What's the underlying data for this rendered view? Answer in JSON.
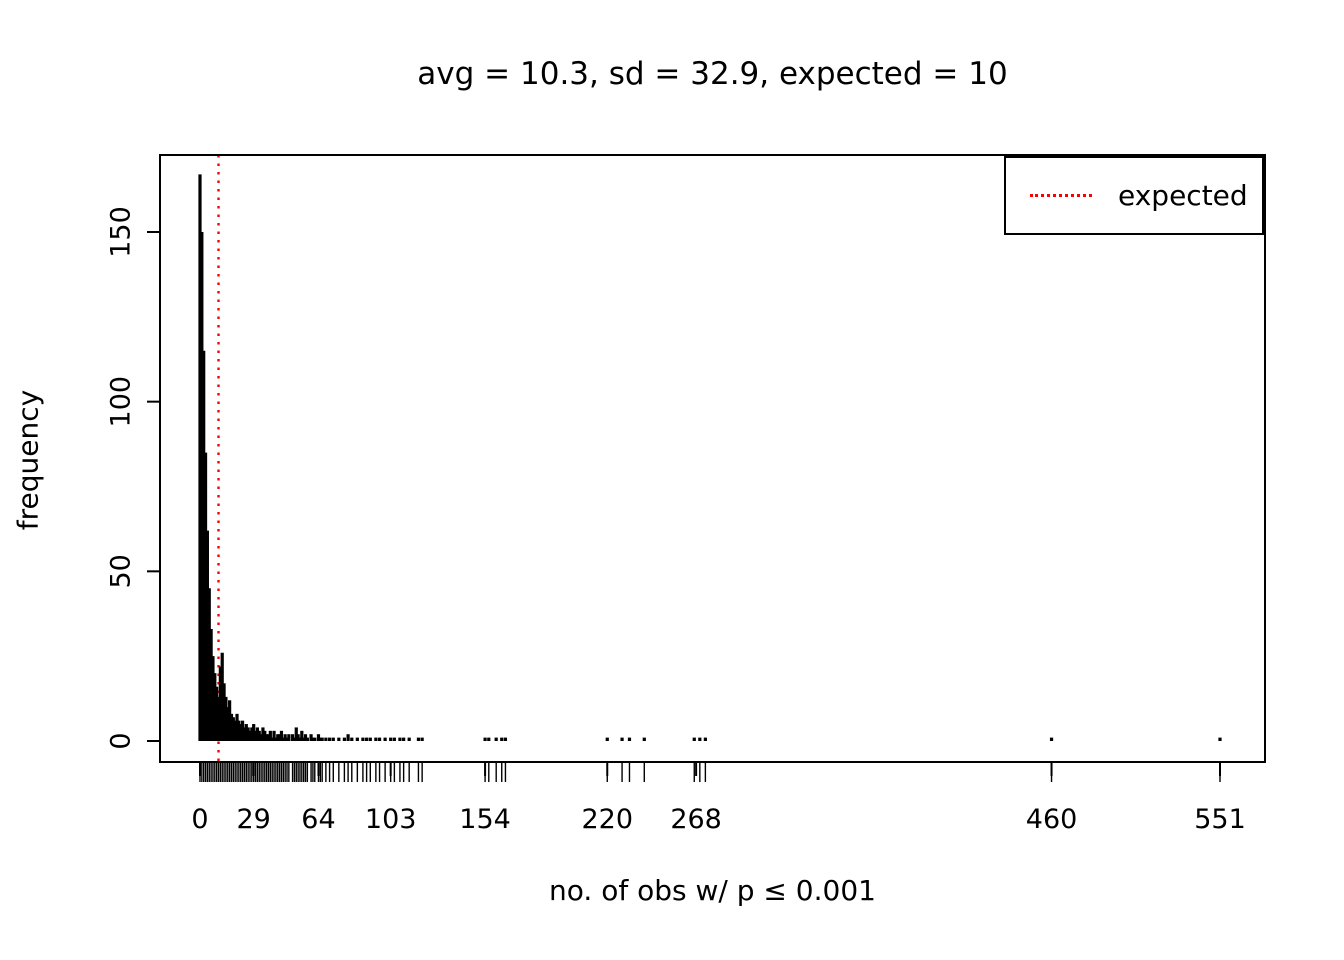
{
  "figure": {
    "title": "avg = 10.3, sd = 32.9, expected = 10",
    "x_axis_label": "no. of obs w/ p ≤ 0.001",
    "y_axis_label": "frequency",
    "legend": {
      "label": "expected"
    }
  },
  "chart_data": {
    "type": "bar",
    "subtype": "spike-histogram-with-rug",
    "title": "avg = 10.3, sd = 32.9, expected = 10",
    "xlabel": "no. of obs w/ p ≤ 0.001",
    "ylabel": "frequency",
    "xlim": [
      0,
      575
    ],
    "ylim": [
      0,
      170
    ],
    "x_tick_labels": [
      0,
      29,
      64,
      103,
      154,
      220,
      268,
      460,
      551
    ],
    "y_tick_labels": [
      0,
      50,
      100,
      150
    ],
    "grid": false,
    "legend": {
      "entries": [
        "expected"
      ],
      "position": "top-right",
      "line_style": "dotted"
    },
    "annotations": [
      {
        "type": "vline",
        "x": 10,
        "style": "dotted",
        "color": "#ff0000",
        "meaning": "expected"
      }
    ],
    "colors": {
      "spike": "#000000",
      "expected_line": "#ff0000"
    },
    "series": [
      {
        "name": "frequency",
        "points": [
          [
            0,
            167
          ],
          [
            1,
            150
          ],
          [
            2,
            115
          ],
          [
            3,
            85
          ],
          [
            4,
            62
          ],
          [
            5,
            45
          ],
          [
            6,
            33
          ],
          [
            7,
            25
          ],
          [
            8,
            20
          ],
          [
            9,
            16
          ],
          [
            10,
            13
          ],
          [
            11,
            22
          ],
          [
            12,
            26
          ],
          [
            13,
            17
          ],
          [
            14,
            13
          ],
          [
            15,
            10
          ],
          [
            16,
            12
          ],
          [
            17,
            8
          ],
          [
            18,
            7
          ],
          [
            19,
            6
          ],
          [
            20,
            8
          ],
          [
            21,
            6
          ],
          [
            22,
            5
          ],
          [
            23,
            6
          ],
          [
            24,
            4
          ],
          [
            25,
            5
          ],
          [
            26,
            4
          ],
          [
            27,
            3
          ],
          [
            28,
            4
          ],
          [
            29,
            5
          ],
          [
            30,
            3
          ],
          [
            31,
            4
          ],
          [
            32,
            3
          ],
          [
            33,
            2
          ],
          [
            34,
            4
          ],
          [
            35,
            3
          ],
          [
            36,
            2
          ],
          [
            37,
            2
          ],
          [
            38,
            3
          ],
          [
            39,
            1
          ],
          [
            40,
            3
          ],
          [
            41,
            1
          ],
          [
            42,
            2
          ],
          [
            43,
            2
          ],
          [
            44,
            3
          ],
          [
            45,
            1
          ],
          [
            46,
            2
          ],
          [
            47,
            1
          ],
          [
            48,
            2
          ],
          [
            50,
            2
          ],
          [
            51,
            1
          ],
          [
            52,
            4
          ],
          [
            53,
            2
          ],
          [
            54,
            1
          ],
          [
            55,
            3
          ],
          [
            56,
            1
          ],
          [
            57,
            2
          ],
          [
            58,
            1
          ],
          [
            60,
            2
          ],
          [
            61,
            1
          ],
          [
            62,
            1
          ],
          [
            64,
            2
          ],
          [
            65,
            1
          ],
          [
            66,
            1
          ],
          [
            68,
            1
          ],
          [
            70,
            1
          ],
          [
            72,
            1
          ],
          [
            75,
            1
          ],
          [
            78,
            1
          ],
          [
            80,
            2
          ],
          [
            82,
            1
          ],
          [
            85,
            1
          ],
          [
            88,
            1
          ],
          [
            90,
            1
          ],
          [
            92,
            1
          ],
          [
            95,
            1
          ],
          [
            97,
            1
          ],
          [
            100,
            1
          ],
          [
            103,
            1
          ],
          [
            105,
            1
          ],
          [
            108,
            1
          ],
          [
            110,
            1
          ],
          [
            113,
            1
          ],
          [
            118,
            1
          ],
          [
            120,
            1
          ],
          [
            154,
            1
          ],
          [
            156,
            1
          ],
          [
            160,
            1
          ],
          [
            163,
            1
          ],
          [
            165,
            1
          ],
          [
            220,
            1
          ],
          [
            228,
            1
          ],
          [
            232,
            1
          ],
          [
            240,
            1
          ],
          [
            267,
            1
          ],
          [
            270,
            1
          ],
          [
            273,
            1
          ],
          [
            460,
            1
          ],
          [
            551,
            1
          ]
        ]
      }
    ],
    "rug": "tick marks below x-axis at each observed x value"
  }
}
